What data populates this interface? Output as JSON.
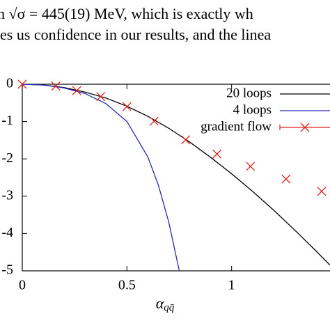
{
  "page_text": [
    "h √σ = 445(19) MeV, which is exactly wh",
    "es us confidence in our results, and the linea"
  ],
  "chart_data": {
    "type": "line",
    "x_label": "α",
    "x_label_sub": "qq̄",
    "xlim": [
      0,
      1.47
    ],
    "ylim": [
      -5,
      0
    ],
    "xticks": [
      0,
      0.5,
      1
    ],
    "yticks": [
      0,
      -1,
      -2,
      -3,
      -4,
      -5
    ],
    "series": [
      {
        "name": "20 loops",
        "color": "#000000",
        "marker": "none",
        "x": [
          0,
          0.1,
          0.2,
          0.3,
          0.4,
          0.5,
          0.6,
          0.7,
          0.8,
          0.9,
          1.0,
          1.1,
          1.2,
          1.3,
          1.4,
          1.47
        ],
        "values": [
          0,
          -0.02,
          -0.09,
          -0.21,
          -0.37,
          -0.59,
          -0.86,
          -1.18,
          -1.55,
          -1.96,
          -2.4,
          -2.87,
          -3.37,
          -3.9,
          -4.45,
          -4.85
        ]
      },
      {
        "name": "4 loops",
        "color": "#2a2ab8",
        "marker": "none",
        "x": [
          0,
          0.1,
          0.2,
          0.3,
          0.4,
          0.5,
          0.6,
          0.65,
          0.7,
          0.75
        ],
        "values": [
          0,
          -0.02,
          -0.1,
          -0.25,
          -0.52,
          -1.0,
          -1.95,
          -2.7,
          -3.7,
          -5
        ]
      },
      {
        "name": "gradient flow",
        "color": "#e0201b",
        "marker": "x",
        "x": [
          0,
          0.16,
          0.26,
          0.375,
          0.5,
          0.63,
          0.78,
          0.93,
          1.09,
          1.26,
          1.43
        ],
        "values": [
          0,
          -0.05,
          -0.17,
          -0.33,
          -0.6,
          -0.99,
          -1.49,
          -1.87,
          -2.2,
          -2.54,
          -2.87
        ]
      }
    ]
  }
}
